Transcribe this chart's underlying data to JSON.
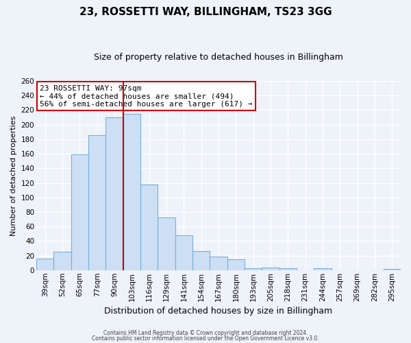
{
  "title": "23, ROSSETTI WAY, BILLINGHAM, TS23 3GG",
  "subtitle": "Size of property relative to detached houses in Billingham",
  "xlabel": "Distribution of detached houses by size in Billingham",
  "ylabel": "Number of detached properties",
  "categories": [
    "39sqm",
    "52sqm",
    "65sqm",
    "77sqm",
    "90sqm",
    "103sqm",
    "116sqm",
    "129sqm",
    "141sqm",
    "154sqm",
    "167sqm",
    "180sqm",
    "193sqm",
    "205sqm",
    "218sqm",
    "231sqm",
    "244sqm",
    "257sqm",
    "269sqm",
    "282sqm",
    "295sqm"
  ],
  "values": [
    16,
    25,
    159,
    186,
    210,
    215,
    118,
    72,
    48,
    26,
    19,
    15,
    3,
    4,
    3,
    0,
    3,
    0,
    0,
    0,
    2
  ],
  "bar_color": "#ccdff5",
  "bar_edge_color": "#7aaed6",
  "marker_label": "23 ROSSETTI WAY: 97sqm",
  "marker_line_color": "#cc0000",
  "annotation_line1": "← 44% of detached houses are smaller (494)",
  "annotation_line2": "56% of semi-detached houses are larger (617) →",
  "annotation_box_color": "#ffffff",
  "annotation_box_edge": "#cc0000",
  "ylim": [
    0,
    260
  ],
  "yticks": [
    0,
    20,
    40,
    60,
    80,
    100,
    120,
    140,
    160,
    180,
    200,
    220,
    240,
    260
  ],
  "footer1": "Contains HM Land Registry data © Crown copyright and database right 2024.",
  "footer2": "Contains public sector information licensed under the Open Government Licence v3.0.",
  "bg_color": "#eef2f9",
  "plot_bg_color": "#eef2f9",
  "grid_color": "#ffffff",
  "title_fontsize": 11,
  "subtitle_fontsize": 9,
  "ylabel_fontsize": 8,
  "xlabel_fontsize": 9,
  "tick_fontsize": 7.5,
  "footer_fontsize": 5.5,
  "annotation_fontsize": 8
}
